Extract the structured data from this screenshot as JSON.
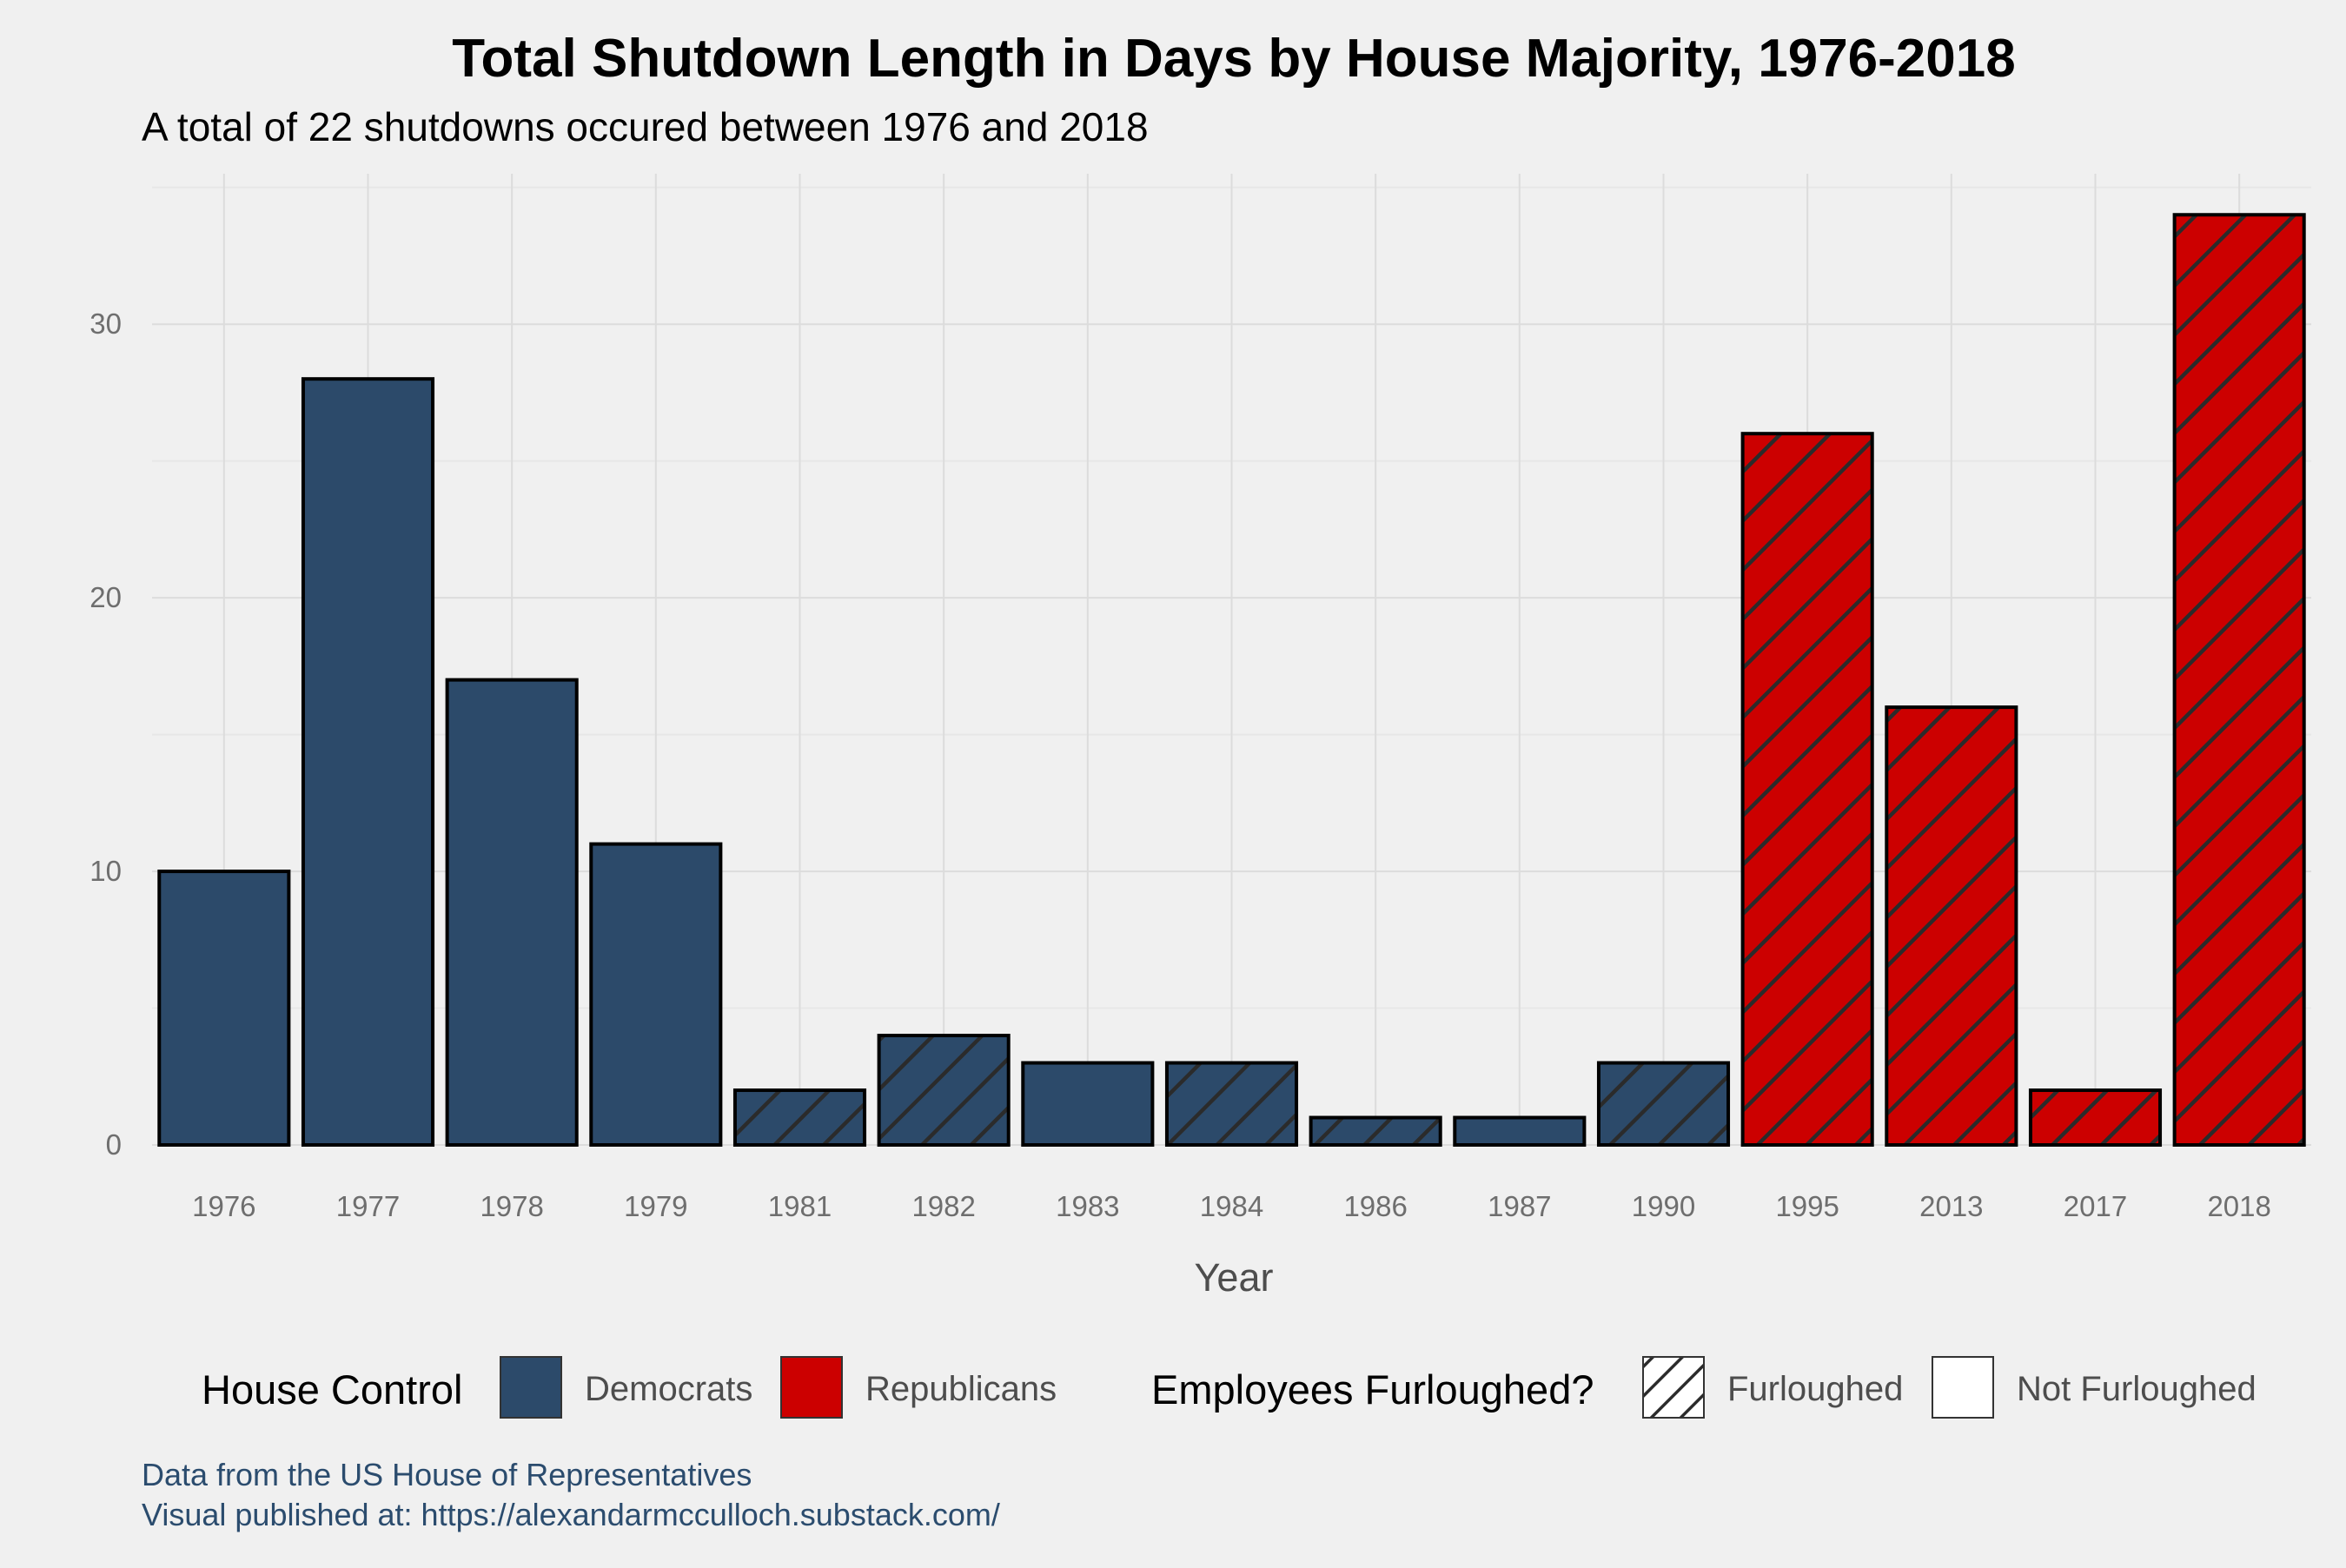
{
  "chart_data": {
    "type": "bar",
    "title": "Total Shutdown Length in Days by House Majority, 1976-2018",
    "subtitle": "A total of 22 shutdowns occured between 1976 and 2018",
    "xlabel": "Year",
    "ylabel": "",
    "ylim": [
      0,
      35.5
    ],
    "yticks": [
      0,
      10,
      20,
      30
    ],
    "grid": true,
    "categories": [
      "1976",
      "1977",
      "1978",
      "1979",
      "1981",
      "1982",
      "1983",
      "1984",
      "1986",
      "1987",
      "1990",
      "1995",
      "2013",
      "2017",
      "2018"
    ],
    "values": [
      10,
      28,
      17,
      11,
      2,
      4,
      3,
      3,
      1,
      1,
      3,
      26,
      16,
      2,
      34
    ],
    "house_control": [
      "Democrats",
      "Democrats",
      "Democrats",
      "Democrats",
      "Democrats",
      "Democrats",
      "Democrats",
      "Democrats",
      "Democrats",
      "Democrats",
      "Democrats",
      "Republicans",
      "Republicans",
      "Republicans",
      "Republicans"
    ],
    "furloughed": [
      false,
      false,
      false,
      false,
      true,
      true,
      false,
      true,
      true,
      false,
      true,
      true,
      true,
      true,
      true
    ],
    "colors": {
      "Democrats": "#2c4a6a",
      "Republicans": "#cc0000",
      "hatch": "#2b2b2b"
    },
    "legend": {
      "position": "bottom",
      "house_control_title": "House Control",
      "democrats_label": "Democrats",
      "republicans_label": "Republicans",
      "furlough_title": "Employees Furloughed?",
      "furloughed_label": "Furloughed",
      "not_furloughed_label": "Not Furloughed"
    },
    "caption_line1": "Data from the US House of Representatives",
    "caption_line2": "Visual published at: https://alexandarmcculloch.substack.com/"
  }
}
